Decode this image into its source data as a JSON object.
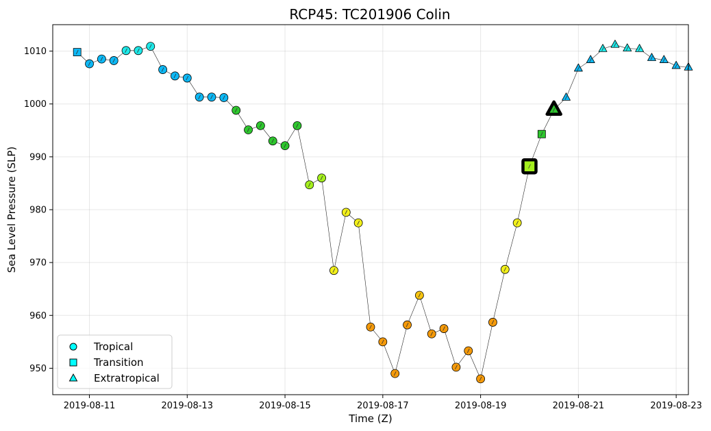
{
  "chart_data": {
    "type": "scatter",
    "title": "RCP45: TC201906 Colin",
    "xlabel": "Time (Z)",
    "ylabel": "Sea Level Pressure (SLP)",
    "xticks": [
      "2019-08-11",
      "2019-08-13",
      "2019-08-15",
      "2019-08-17",
      "2019-08-19",
      "2019-08-21",
      "2019-08-23"
    ],
    "yticks": [
      950,
      960,
      970,
      980,
      990,
      1000,
      1010
    ],
    "xlim": [
      "2019-08-10 06:00",
      "2019-08-23 06:00"
    ],
    "ylim": [
      945,
      1015
    ],
    "grid": true,
    "legend": {
      "placement": "bottom-left",
      "entries": [
        {
          "label": "Tropical",
          "marker": "circle"
        },
        {
          "label": "Transition",
          "marker": "square"
        },
        {
          "label": "Extratropical",
          "marker": "triangle"
        }
      ]
    },
    "color_scale": {
      "cyan": "#1ee8e8",
      "blue": "#0db8f5",
      "green": "#2ec72e",
      "lime": "#a5f01e",
      "yellow": "#f2f01a",
      "gold": "#f7c411",
      "orange": "#f59a0a"
    },
    "points": [
      {
        "t": "2019-08-10 18:00",
        "slp": 1009.8,
        "phase": "Transition",
        "color": "blue"
      },
      {
        "t": "2019-08-11 00:00",
        "slp": 1007.6,
        "phase": "Tropical",
        "color": "blue"
      },
      {
        "t": "2019-08-11 06:00",
        "slp": 1008.5,
        "phase": "Tropical",
        "color": "blue"
      },
      {
        "t": "2019-08-11 12:00",
        "slp": 1008.2,
        "phase": "Tropical",
        "color": "blue"
      },
      {
        "t": "2019-08-11 18:00",
        "slp": 1010.1,
        "phase": "Tropical",
        "color": "cyan"
      },
      {
        "t": "2019-08-12 00:00",
        "slp": 1010.1,
        "phase": "Tropical",
        "color": "cyan"
      },
      {
        "t": "2019-08-12 06:00",
        "slp": 1010.9,
        "phase": "Tropical",
        "color": "cyan"
      },
      {
        "t": "2019-08-12 12:00",
        "slp": 1006.5,
        "phase": "Tropical",
        "color": "blue"
      },
      {
        "t": "2019-08-12 18:00",
        "slp": 1005.3,
        "phase": "Tropical",
        "color": "blue"
      },
      {
        "t": "2019-08-13 00:00",
        "slp": 1004.9,
        "phase": "Tropical",
        "color": "blue"
      },
      {
        "t": "2019-08-13 06:00",
        "slp": 1001.3,
        "phase": "Tropical",
        "color": "blue"
      },
      {
        "t": "2019-08-13 12:00",
        "slp": 1001.3,
        "phase": "Tropical",
        "color": "blue"
      },
      {
        "t": "2019-08-13 18:00",
        "slp": 1001.2,
        "phase": "Tropical",
        "color": "blue"
      },
      {
        "t": "2019-08-14 00:00",
        "slp": 998.8,
        "phase": "Tropical",
        "color": "green"
      },
      {
        "t": "2019-08-14 06:00",
        "slp": 995.1,
        "phase": "Tropical",
        "color": "green"
      },
      {
        "t": "2019-08-14 12:00",
        "slp": 995.9,
        "phase": "Tropical",
        "color": "green"
      },
      {
        "t": "2019-08-14 18:00",
        "slp": 993.0,
        "phase": "Tropical",
        "color": "green"
      },
      {
        "t": "2019-08-15 00:00",
        "slp": 992.1,
        "phase": "Tropical",
        "color": "green"
      },
      {
        "t": "2019-08-15 06:00",
        "slp": 995.9,
        "phase": "Tropical",
        "color": "green"
      },
      {
        "t": "2019-08-15 12:00",
        "slp": 984.7,
        "phase": "Tropical",
        "color": "lime"
      },
      {
        "t": "2019-08-15 18:00",
        "slp": 986.0,
        "phase": "Tropical",
        "color": "lime"
      },
      {
        "t": "2019-08-16 00:00",
        "slp": 968.5,
        "phase": "Tropical",
        "color": "yellow"
      },
      {
        "t": "2019-08-16 06:00",
        "slp": 979.5,
        "phase": "Tropical",
        "color": "yellow"
      },
      {
        "t": "2019-08-16 12:00",
        "slp": 977.5,
        "phase": "Tropical",
        "color": "yellow"
      },
      {
        "t": "2019-08-16 18:00",
        "slp": 957.8,
        "phase": "Tropical",
        "color": "orange"
      },
      {
        "t": "2019-08-17 00:00",
        "slp": 955.0,
        "phase": "Tropical",
        "color": "orange"
      },
      {
        "t": "2019-08-17 06:00",
        "slp": 949.0,
        "phase": "Tropical",
        "color": "orange"
      },
      {
        "t": "2019-08-17 12:00",
        "slp": 958.2,
        "phase": "Tropical",
        "color": "orange"
      },
      {
        "t": "2019-08-17 18:00",
        "slp": 963.8,
        "phase": "Tropical",
        "color": "gold"
      },
      {
        "t": "2019-08-18 00:00",
        "slp": 956.5,
        "phase": "Tropical",
        "color": "orange"
      },
      {
        "t": "2019-08-18 06:00",
        "slp": 957.5,
        "phase": "Tropical",
        "color": "orange"
      },
      {
        "t": "2019-08-18 12:00",
        "slp": 950.2,
        "phase": "Tropical",
        "color": "orange"
      },
      {
        "t": "2019-08-18 18:00",
        "slp": 953.3,
        "phase": "Tropical",
        "color": "orange"
      },
      {
        "t": "2019-08-19 00:00",
        "slp": 948.0,
        "phase": "Tropical",
        "color": "orange"
      },
      {
        "t": "2019-08-19 06:00",
        "slp": 958.7,
        "phase": "Tropical",
        "color": "orange"
      },
      {
        "t": "2019-08-19 12:00",
        "slp": 968.7,
        "phase": "Tropical",
        "color": "yellow"
      },
      {
        "t": "2019-08-19 18:00",
        "slp": 977.5,
        "phase": "Tropical",
        "color": "yellow"
      },
      {
        "t": "2019-08-20 00:00",
        "slp": 988.2,
        "phase": "Transition",
        "color": "lime",
        "highlight": true
      },
      {
        "t": "2019-08-20 06:00",
        "slp": 994.3,
        "phase": "Transition",
        "color": "green"
      },
      {
        "t": "2019-08-20 12:00",
        "slp": 998.9,
        "phase": "Extratropical",
        "color": "green",
        "highlight": true
      },
      {
        "t": "2019-08-20 18:00",
        "slp": 1001.2,
        "phase": "Extratropical",
        "color": "blue"
      },
      {
        "t": "2019-08-21 00:00",
        "slp": 1006.7,
        "phase": "Extratropical",
        "color": "blue"
      },
      {
        "t": "2019-08-21 06:00",
        "slp": 1008.3,
        "phase": "Extratropical",
        "color": "blue"
      },
      {
        "t": "2019-08-21 12:00",
        "slp": 1010.4,
        "phase": "Extratropical",
        "color": "cyan"
      },
      {
        "t": "2019-08-21 18:00",
        "slp": 1011.2,
        "phase": "Extratropical",
        "color": "cyan"
      },
      {
        "t": "2019-08-22 00:00",
        "slp": 1010.5,
        "phase": "Extratropical",
        "color": "cyan"
      },
      {
        "t": "2019-08-22 06:00",
        "slp": 1010.4,
        "phase": "Extratropical",
        "color": "cyan"
      },
      {
        "t": "2019-08-22 12:00",
        "slp": 1008.7,
        "phase": "Extratropical",
        "color": "blue"
      },
      {
        "t": "2019-08-22 18:00",
        "slp": 1008.3,
        "phase": "Extratropical",
        "color": "blue"
      },
      {
        "t": "2019-08-23 00:00",
        "slp": 1007.2,
        "phase": "Extratropical",
        "color": "blue"
      },
      {
        "t": "2019-08-23 06:00",
        "slp": 1006.9,
        "phase": "Extratropical",
        "color": "blue"
      }
    ]
  }
}
